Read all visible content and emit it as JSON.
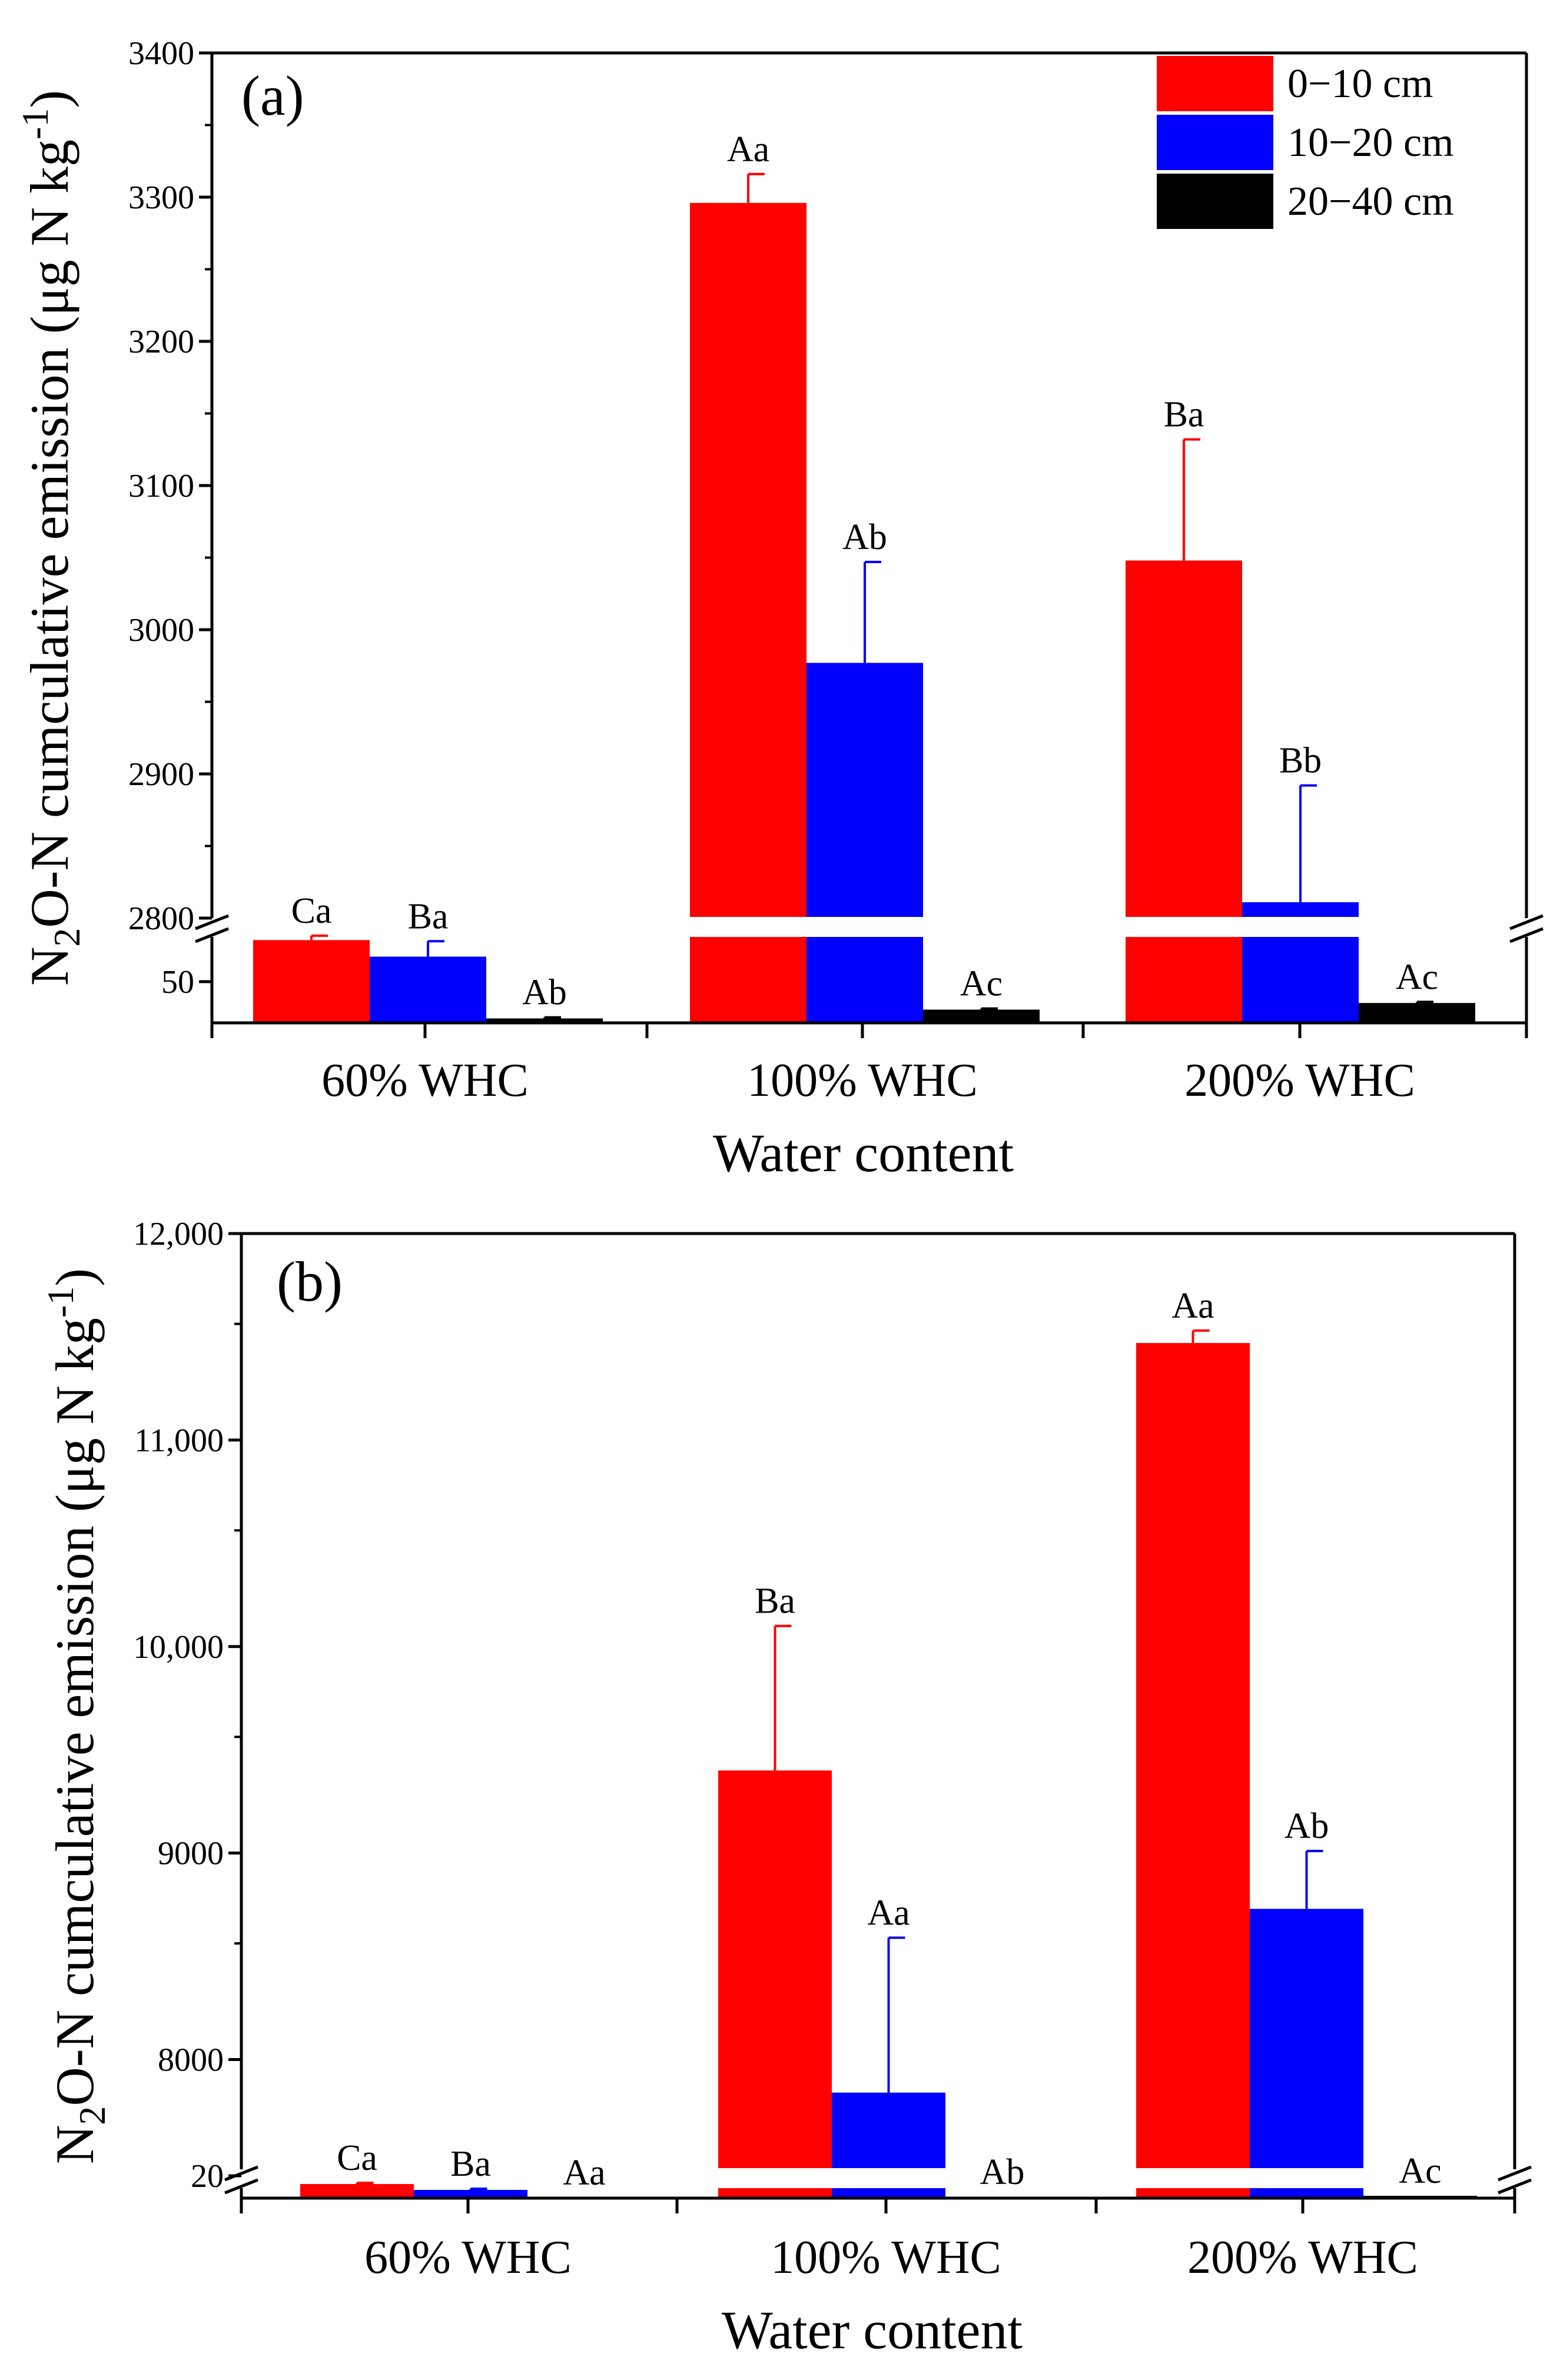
{
  "chart_data": [
    {
      "panel": "(a)",
      "type": "bar",
      "title": "",
      "xlabel": "Water content",
      "ylabel": {
        "pre": "N",
        "sub": "2",
        "mid": "O-N cumculative emission (μg N kg",
        "sup": "-1",
        "post": ")"
      },
      "categories": [
        "60% WHC",
        "100% WHC",
        "200% WHC"
      ],
      "series": [
        {
          "name": "0−10 cm",
          "color": "#ff0000",
          "values": [
            75,
            3296,
            3048
          ],
          "errors": [
            4,
            20,
            84
          ],
          "letters": [
            "Ca",
            "Aa",
            "Ba"
          ]
        },
        {
          "name": "10−20 cm",
          "color": "#0000ff",
          "values": [
            60,
            2977,
            2811
          ],
          "errors": [
            14,
            70,
            81
          ],
          "letters": [
            "Ba",
            "Ab",
            "Bb"
          ]
        },
        {
          "name": "20−40 cm",
          "color": "#000000",
          "values": [
            4,
            12,
            18
          ],
          "errors": [
            1,
            1,
            1
          ],
          "letters": [
            "Ab",
            "Ac",
            "Ac"
          ]
        }
      ],
      "axis_break": {
        "lower_range": [
          0,
          80
        ],
        "upper_range": [
          2800,
          3400
        ]
      },
      "yticks_lower": [
        "50"
      ],
      "yticks_upper": [
        "2800",
        "2900",
        "3000",
        "3100",
        "3200",
        "3300",
        "3400"
      ],
      "legend": {
        "placement": "top-right",
        "entries": [
          "0−10 cm",
          "10−20 cm",
          "20−40 cm"
        ]
      }
    },
    {
      "panel": "(b)",
      "type": "bar",
      "title": "",
      "xlabel": "Water content",
      "ylabel": {
        "pre": "N",
        "sub": "2",
        "mid": "O-N cumculative emission (μg N kg",
        "sup": "-1",
        "post": ")"
      },
      "categories": [
        "60% WHC",
        "100% WHC",
        "200% WHC"
      ],
      "series": [
        {
          "name": "0−10 cm",
          "color": "#ff0000",
          "values": [
            12,
            9400,
            11470
          ],
          "errors": [
            1,
            700,
            60
          ],
          "letters": [
            "Ca",
            "Ba",
            "Aa"
          ]
        },
        {
          "name": "10−20 cm",
          "color": "#0000ff",
          "values": [
            7,
            7840,
            8730
          ],
          "errors": [
            1,
            750,
            280
          ],
          "letters": [
            "Ba",
            "Aa",
            "Ab"
          ]
        },
        {
          "name": "20−40 cm",
          "color": "#000000",
          "values": [
            0.5,
            1,
            2
          ],
          "errors": [
            0,
            0,
            0
          ],
          "letters": [
            "Aa",
            "Ab",
            "Ac"
          ]
        }
      ],
      "axis_break": {
        "lower_range": [
          0,
          20
        ],
        "upper_range": [
          7500,
          12000
        ]
      },
      "yticks_lower": [
        "20"
      ],
      "yticks_upper": [
        "8000",
        "9000",
        "10,000",
        "11,000",
        "12,000"
      ],
      "legend": null
    }
  ]
}
